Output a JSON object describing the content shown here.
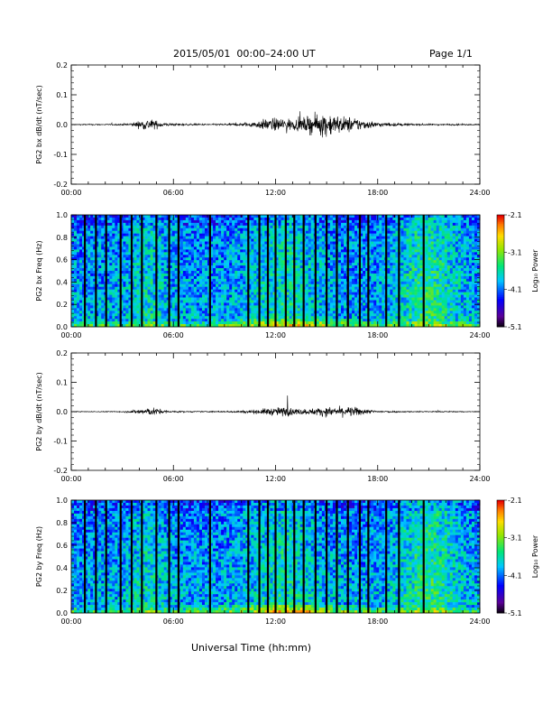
{
  "header": {
    "title": "2015/05/01  00:00–24:00 UT",
    "page": "Page 1/1"
  },
  "footer": {
    "xlabel": "Universal Time (hh:mm)"
  },
  "colors": {
    "ink": "#000000",
    "background": "#ffffff"
  },
  "colorbar": {
    "ticks": [
      "-2.1",
      "-3.1",
      "-4.1",
      "-5.1"
    ],
    "label": "Log₁₀ Power",
    "map": "rainbow (black-purple-blue-cyan-green-yellow-orange-red)"
  },
  "chart_data": [
    {
      "type": "line",
      "ylabel": "PG2 bx dB/dt (nT/sec)",
      "x_ticks": [
        "00:00",
        "06:00",
        "12:00",
        "18:00",
        "24:00"
      ],
      "xlim": [
        0,
        24
      ],
      "ylim": [
        -0.2,
        0.2
      ],
      "y_ticks": [
        "0.2",
        "0.1",
        "0.0",
        "-0.1",
        "-0.2"
      ],
      "grid": false,
      "series": [
        {
          "x_hours": [
            0,
            1,
            2,
            3,
            3.5,
            4,
            4.5,
            5,
            5.5,
            6,
            7,
            8,
            9,
            10,
            10.5,
            11,
            11.5,
            12,
            12.5,
            13,
            13.5,
            14,
            14.5,
            15,
            15.5,
            16,
            16.5,
            17,
            17.5,
            18,
            19,
            20,
            21,
            22,
            23,
            24
          ],
          "envelope": [
            0.002,
            0.003,
            0.003,
            0.004,
            0.008,
            0.018,
            0.03,
            0.02,
            0.01,
            0.006,
            0.004,
            0.004,
            0.005,
            0.008,
            0.012,
            0.02,
            0.03,
            0.032,
            0.035,
            0.028,
            0.03,
            0.045,
            0.05,
            0.065,
            0.05,
            0.04,
            0.04,
            0.028,
            0.02,
            0.012,
            0.008,
            0.005,
            0.004,
            0.004,
            0.003,
            0.003
          ]
        }
      ]
    },
    {
      "type": "heatmap",
      "ylabel": "PG2 bx Freq (Hz)",
      "x_ticks": [
        "00:00",
        "06:00",
        "12:00",
        "18:00",
        "24:00"
      ],
      "xlim": [
        0,
        24
      ],
      "ylim": [
        0,
        1.0
      ],
      "y_ticks": [
        "1.0",
        "0.8",
        "0.6",
        "0.4",
        "0.2",
        "0.0"
      ],
      "zlim": [
        -5.1,
        -2.1
      ],
      "gap_lines_hours": [
        0.8,
        1.45,
        2.05,
        2.9,
        3.55,
        4.15,
        5.0,
        5.75,
        6.3,
        8.15,
        10.4,
        11.05,
        11.55,
        12.0,
        12.6,
        13.1,
        13.65,
        14.35,
        15.0,
        15.6,
        16.25,
        16.95,
        17.45,
        18.5,
        19.25,
        20.7
      ]
    },
    {
      "type": "line",
      "ylabel": "PG2 by dB/dt (nT/sec)",
      "x_ticks": [
        "00:00",
        "06:00",
        "12:00",
        "18:00",
        "24:00"
      ],
      "xlim": [
        0,
        24
      ],
      "ylim": [
        -0.2,
        0.2
      ],
      "y_ticks": [
        "0.2",
        "0.1",
        "0.0",
        "-0.1",
        "-0.2"
      ],
      "grid": false,
      "series": [
        {
          "x_hours": [
            0,
            1,
            2,
            3,
            3.5,
            4,
            4.5,
            5,
            5.5,
            6,
            7,
            8,
            9,
            10,
            10.5,
            11,
            11.5,
            12,
            12.5,
            13,
            13.5,
            14,
            14.5,
            15,
            15.5,
            16,
            16.5,
            17,
            17.5,
            18,
            19,
            20,
            21,
            22,
            23,
            24
          ],
          "envelope": [
            0.002,
            0.002,
            0.002,
            0.003,
            0.006,
            0.015,
            0.02,
            0.018,
            0.008,
            0.004,
            0.003,
            0.003,
            0.003,
            0.006,
            0.008,
            0.012,
            0.018,
            0.02,
            0.025,
            0.018,
            0.015,
            0.015,
            0.02,
            0.022,
            0.022,
            0.025,
            0.025,
            0.02,
            0.01,
            0.006,
            0.004,
            0.003,
            0.003,
            0.003,
            0.002,
            0.002
          ],
          "spike": {
            "hour": 12.7,
            "value": 0.055
          }
        }
      ]
    },
    {
      "type": "heatmap",
      "ylabel": "PG2 by Freq (Hz)",
      "x_ticks": [
        "00:00",
        "06:00",
        "12:00",
        "18:00",
        "24:00"
      ],
      "xlim": [
        0,
        24
      ],
      "ylim": [
        0,
        1.0
      ],
      "y_ticks": [
        "1.0",
        "0.8",
        "0.6",
        "0.4",
        "0.2",
        "0.0"
      ],
      "zlim": [
        -5.1,
        -2.1
      ],
      "gap_lines_hours": [
        0.8,
        1.45,
        2.05,
        2.9,
        3.55,
        4.15,
        5.0,
        5.75,
        6.3,
        8.15,
        10.4,
        11.05,
        11.55,
        12.0,
        12.6,
        13.1,
        13.65,
        14.35,
        15.0,
        15.6,
        16.25,
        16.95,
        17.45,
        18.5,
        19.25,
        20.7
      ]
    }
  ]
}
